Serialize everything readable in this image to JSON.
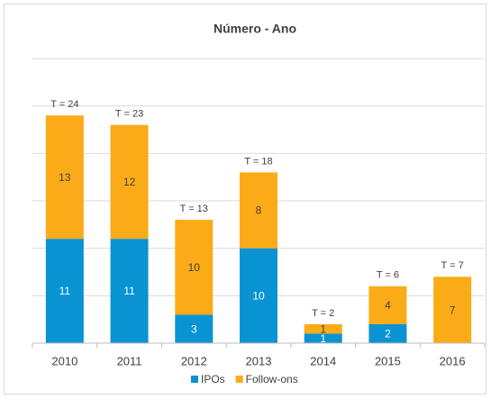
{
  "chart_data": {
    "type": "stacked_bar",
    "title": "Número - Ano",
    "categories": [
      "2010",
      "2011",
      "2012",
      "2013",
      "2014",
      "2015",
      "2016"
    ],
    "series": [
      {
        "name": "IPOs",
        "color": "#0a93d3",
        "values": [
          11,
          11,
          3,
          10,
          1,
          2,
          null
        ]
      },
      {
        "name": "Follow-ons",
        "color": "#fbab18",
        "values": [
          13,
          12,
          10,
          8,
          1,
          4,
          7
        ]
      }
    ],
    "total_labels": [
      "T = 24",
      "T = 23",
      "T = 13",
      "T = 18",
      "T = 2",
      "T = 6",
      "T = 7"
    ],
    "ylim": [
      0,
      30
    ],
    "yticks": [
      0,
      5,
      10,
      15,
      20,
      25,
      30
    ],
    "grid": true,
    "legend": "bottom"
  }
}
